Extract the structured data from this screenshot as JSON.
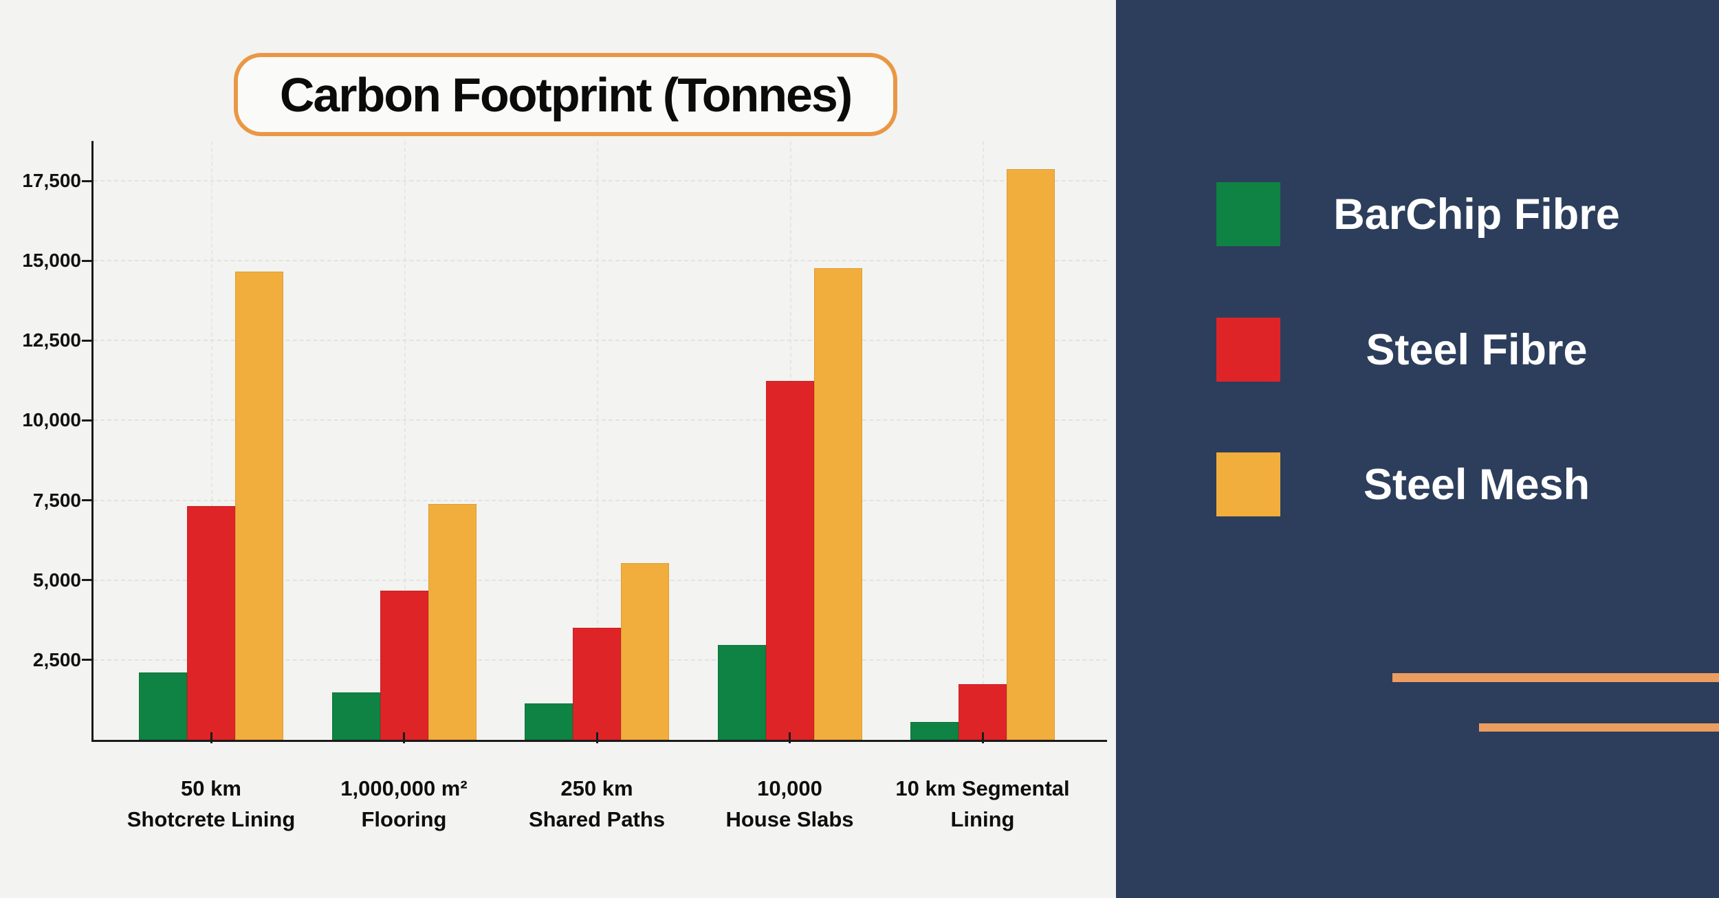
{
  "chart_data": {
    "type": "bar",
    "title": "Carbon Footprint (Tonnes)",
    "categories": [
      "50 km\nShotcrete Lining",
      "1,000,000 m²\nFlooring",
      "250 km\nShared Paths",
      "10,000\nHouse Slabs",
      "10 km Segmental\nLining"
    ],
    "series": [
      {
        "name": "BarChip Fibre",
        "color": "#0F8343",
        "values": [
          2100,
          1480,
          1150,
          2960,
          560
        ]
      },
      {
        "name": "Steel Fibre",
        "color": "#DF2428",
        "values": [
          7320,
          4680,
          3500,
          11240,
          1750
        ]
      },
      {
        "name": "Steel Mesh",
        "color": "#F2AE3C",
        "values": [
          14650,
          7380,
          5530,
          14770,
          17860
        ]
      }
    ],
    "xlabel": "",
    "ylabel": "",
    "ylim": [
      0,
      18750
    ],
    "yticks": [
      2500,
      5000,
      7500,
      10000,
      12500,
      15000,
      17500
    ],
    "ytick_labels": [
      "2,500",
      "5,000",
      "7,500",
      "10,000",
      "12,500",
      "15,000",
      "17,500"
    ],
    "grid": true,
    "legend_position": "right-panel"
  },
  "legend": {
    "items": [
      {
        "label": "BarChip Fibre",
        "color": "#0F8343"
      },
      {
        "label": "Steel Fibre",
        "color": "#DF2428"
      },
      {
        "label": "Steel Mesh",
        "color": "#F2AE3C"
      }
    ]
  },
  "colors": {
    "background": "#F3F3F1",
    "panel": "#2C3E5C",
    "title_border": "#EA9744",
    "accent_line": "#EC9D60",
    "axis": "#1A1A1A",
    "grid": "#E2E2DE",
    "legend_text": "#FFFFFF"
  }
}
